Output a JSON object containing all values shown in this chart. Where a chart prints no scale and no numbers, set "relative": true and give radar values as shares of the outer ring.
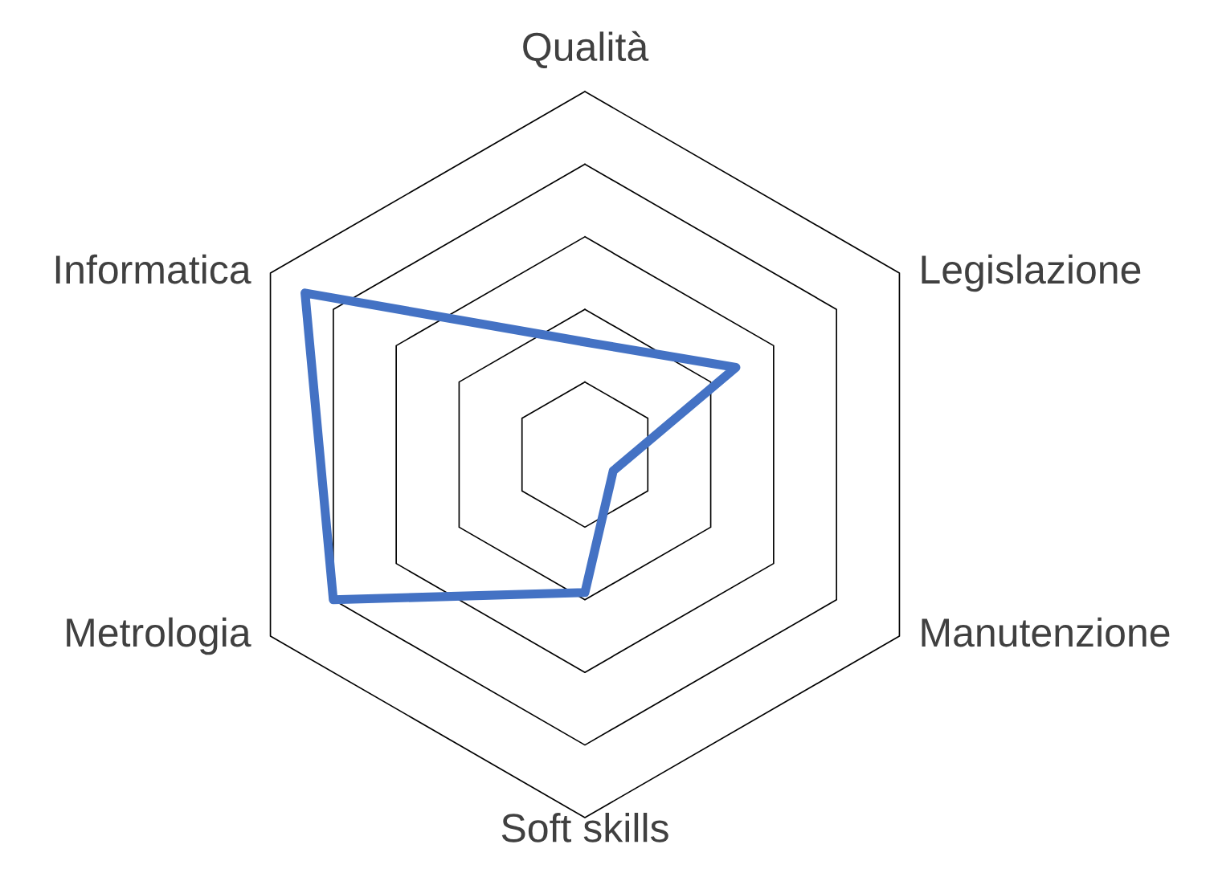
{
  "chart_data": {
    "type": "radar",
    "relative": true,
    "grid": true,
    "categories": [
      "Qualità",
      "Legislazione",
      "Manutenzione",
      "Soft skills",
      "Metrologia",
      "Informatica"
    ],
    "series": [
      {
        "color": "#4472c4",
        "values": [
          0.31,
          0.48,
          0.09,
          0.38,
          0.8,
          0.89
        ]
      }
    ]
  }
}
